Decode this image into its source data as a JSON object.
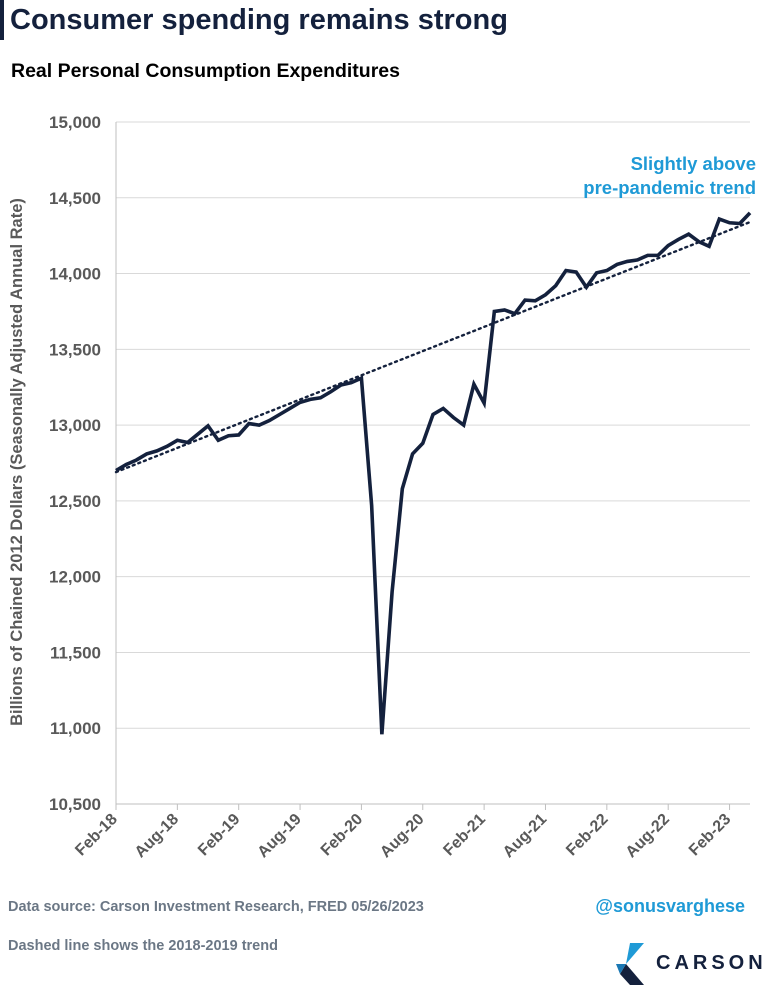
{
  "header": {
    "title": "Consumer spending remains strong",
    "subtitle": "Real Personal Consumption Expenditures"
  },
  "footer": {
    "source": "Data source: Carson Investment Research, FRED   05/26/2023",
    "note": "Dashed line shows the 2018-2019 trend",
    "handle": "@sonusvarghese",
    "logo_text": "CARSON"
  },
  "colors": {
    "series": "#14213d",
    "annotation": "#1f9ad6",
    "grid": "#d9d9d9",
    "axis_text": "#595959"
  },
  "chart_data": {
    "type": "line",
    "title": "Real Personal Consumption Expenditures",
    "xlabel": "",
    "ylabel": "Billions of Chained 2012 Dollars (Seasonally Adjusted Annual Rate)",
    "ylim": [
      10500,
      15000
    ],
    "yticks": [
      10500,
      11000,
      11500,
      12000,
      12500,
      13000,
      13500,
      14000,
      14500,
      15000
    ],
    "ytick_labels": [
      "10,500",
      "11,000",
      "11,500",
      "12,000",
      "12,500",
      "13,000",
      "13,500",
      "14,000",
      "14,500",
      "15,000"
    ],
    "xlim": [
      "2018-02",
      "2023-04"
    ],
    "xticks": [
      "2018-02",
      "2018-08",
      "2019-02",
      "2019-08",
      "2020-02",
      "2020-08",
      "2021-02",
      "2021-08",
      "2022-02",
      "2022-08",
      "2023-02"
    ],
    "xtick_labels": [
      "Feb-18",
      "Aug-18",
      "Feb-19",
      "Aug-19",
      "Feb-20",
      "Aug-20",
      "Feb-21",
      "Aug-21",
      "Feb-22",
      "Aug-22",
      "Feb-23"
    ],
    "grid": "horizontal",
    "series": [
      {
        "style": "solid",
        "x": [
          "2018-02",
          "2018-03",
          "2018-04",
          "2018-05",
          "2018-06",
          "2018-07",
          "2018-08",
          "2018-09",
          "2018-10",
          "2018-11",
          "2018-12",
          "2019-01",
          "2019-02",
          "2019-03",
          "2019-04",
          "2019-05",
          "2019-06",
          "2019-07",
          "2019-08",
          "2019-09",
          "2019-10",
          "2019-11",
          "2019-12",
          "2020-01",
          "2020-02",
          "2020-03",
          "2020-04",
          "2020-05",
          "2020-06",
          "2020-07",
          "2020-08",
          "2020-09",
          "2020-10",
          "2020-11",
          "2020-12",
          "2021-01",
          "2021-02",
          "2021-03",
          "2021-04",
          "2021-05",
          "2021-06",
          "2021-07",
          "2021-08",
          "2021-09",
          "2021-10",
          "2021-11",
          "2021-12",
          "2022-01",
          "2022-02",
          "2022-03",
          "2022-04",
          "2022-05",
          "2022-06",
          "2022-07",
          "2022-08",
          "2022-09",
          "2022-10",
          "2022-11",
          "2022-12",
          "2023-01",
          "2023-02",
          "2023-03",
          "2023-04"
        ],
        "y": [
          12700,
          12740,
          12770,
          12810,
          12830,
          12860,
          12900,
          12885,
          12940,
          12995,
          12900,
          12930,
          12935,
          13010,
          13000,
          13030,
          13070,
          13110,
          13150,
          13170,
          13180,
          13220,
          13265,
          13280,
          13310,
          12470,
          10960,
          11900,
          12580,
          12810,
          12880,
          13070,
          13110,
          13050,
          13000,
          13270,
          13145,
          13750,
          13760,
          13735,
          13825,
          13820,
          13860,
          13920,
          14020,
          14010,
          13910,
          14005,
          14020,
          14060,
          14080,
          14090,
          14120,
          14120,
          14185,
          14225,
          14260,
          14210,
          14180,
          14360,
          14335,
          14330,
          14400
        ]
      },
      {
        "style": "dotted",
        "x": [
          "2018-02",
          "2023-04"
        ],
        "y": [
          12690,
          14340
        ]
      }
    ],
    "annotations": [
      {
        "text_lines": [
          "Slightly above",
          "pre-pandemic trend"
        ],
        "near_x": "2023-04"
      }
    ]
  }
}
